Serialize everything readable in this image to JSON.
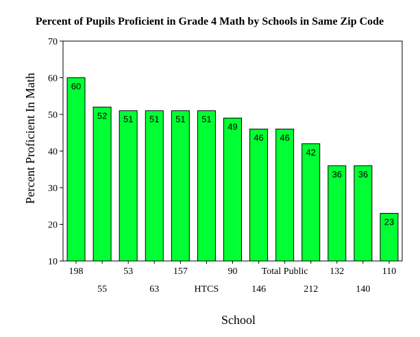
{
  "chart_data": {
    "type": "bar",
    "title": "Percent of Pupils Proficient in Grade 4 Math by Schools in Same Zip Code",
    "xlabel": "School",
    "ylabel": "Percent Proficient In Math",
    "categories": [
      "198",
      "55",
      "53",
      "63",
      "157",
      "HTCS",
      "90",
      "146",
      "Total Public",
      "212",
      "132",
      "140",
      "110"
    ],
    "values": [
      60,
      52,
      51,
      51,
      51,
      51,
      49,
      46,
      46,
      42,
      36,
      36,
      23
    ],
    "ylim": [
      10,
      70
    ],
    "yticks": [
      10,
      20,
      30,
      40,
      50,
      60,
      70
    ],
    "bar_color": "#00ff33",
    "grid": false,
    "legend": "none"
  }
}
